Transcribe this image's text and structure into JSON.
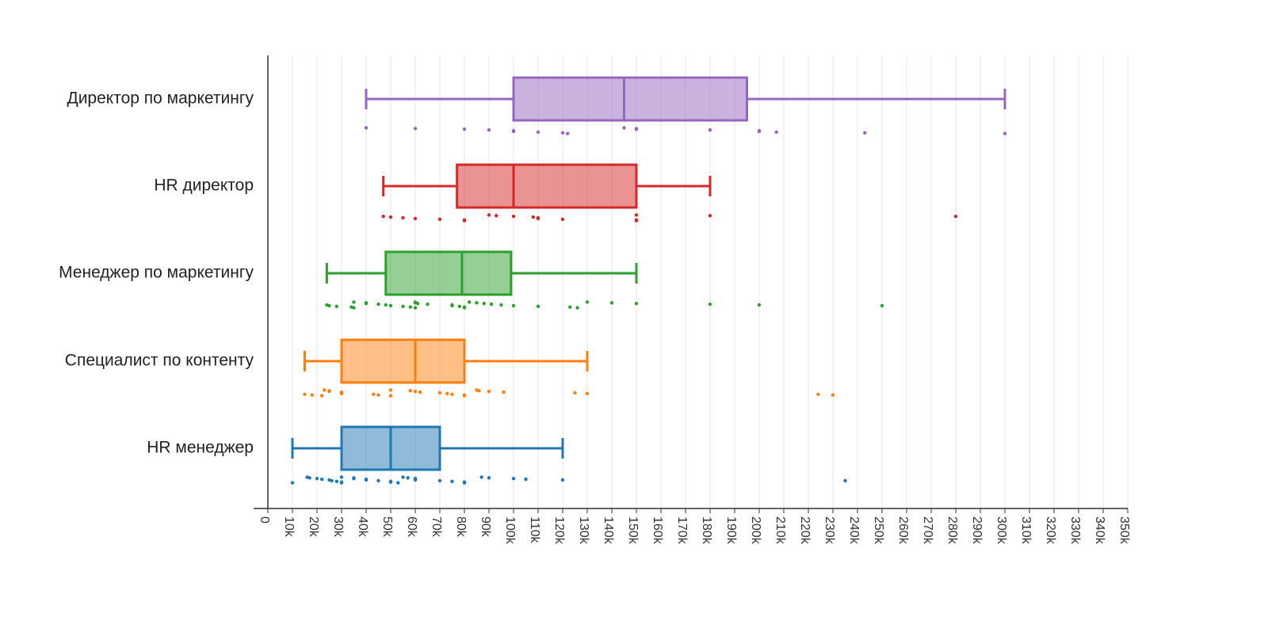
{
  "chart_data": {
    "type": "box",
    "title": "",
    "xlabel": "",
    "ylabel": "",
    "xlim": [
      0,
      350000
    ],
    "grid": true,
    "orientation": "horizontal",
    "x_ticks": [
      {
        "value": 0,
        "label": "0"
      },
      {
        "value": 10000,
        "label": "10k"
      },
      {
        "value": 20000,
        "label": "20k"
      },
      {
        "value": 30000,
        "label": "30k"
      },
      {
        "value": 40000,
        "label": "40k"
      },
      {
        "value": 50000,
        "label": "50k"
      },
      {
        "value": 60000,
        "label": "60k"
      },
      {
        "value": 70000,
        "label": "70k"
      },
      {
        "value": 80000,
        "label": "80k"
      },
      {
        "value": 90000,
        "label": "90k"
      },
      {
        "value": 100000,
        "label": "100k"
      },
      {
        "value": 110000,
        "label": "110k"
      },
      {
        "value": 120000,
        "label": "120k"
      },
      {
        "value": 130000,
        "label": "130k"
      },
      {
        "value": 140000,
        "label": "140k"
      },
      {
        "value": 150000,
        "label": "150k"
      },
      {
        "value": 160000,
        "label": "160k"
      },
      {
        "value": 170000,
        "label": "170k"
      },
      {
        "value": 180000,
        "label": "180k"
      },
      {
        "value": 190000,
        "label": "190k"
      },
      {
        "value": 200000,
        "label": "200k"
      },
      {
        "value": 210000,
        "label": "210k"
      },
      {
        "value": 220000,
        "label": "220k"
      },
      {
        "value": 230000,
        "label": "230k"
      },
      {
        "value": 240000,
        "label": "240k"
      },
      {
        "value": 250000,
        "label": "250k"
      },
      {
        "value": 260000,
        "label": "260k"
      },
      {
        "value": 270000,
        "label": "270k"
      },
      {
        "value": 280000,
        "label": "280k"
      },
      {
        "value": 290000,
        "label": "290k"
      },
      {
        "value": 300000,
        "label": "300k"
      },
      {
        "value": 310000,
        "label": "310k"
      },
      {
        "value": 320000,
        "label": "320k"
      },
      {
        "value": 330000,
        "label": "330k"
      },
      {
        "value": 340000,
        "label": "340k"
      },
      {
        "value": 350000,
        "label": "350k"
      }
    ],
    "series": [
      {
        "name": "Директор по маркетингу",
        "color": "#9467bd",
        "whisker_low": 40000,
        "q1": 100000,
        "median": 145000,
        "q3": 195000,
        "whisker_high": 300000,
        "points": [
          40000,
          60000,
          80000,
          90000,
          100000,
          100000,
          110000,
          120000,
          122000,
          145000,
          150000,
          150000,
          180000,
          200000,
          200000,
          207000,
          243000,
          300000
        ]
      },
      {
        "name": "HR директор",
        "color": "#d62728",
        "whisker_low": 47000,
        "q1": 77000,
        "median": 100000,
        "q3": 150000,
        "whisker_high": 180000,
        "points": [
          47000,
          50000,
          55000,
          60000,
          70000,
          80000,
          80000,
          90000,
          93000,
          100000,
          108000,
          110000,
          110000,
          120000,
          150000,
          150000,
          150000,
          180000,
          280000
        ]
      },
      {
        "name": "Менеджер по маркетингу",
        "color": "#2ca02c",
        "whisker_low": 24000,
        "q1": 48000,
        "median": 79000,
        "q3": 99000,
        "whisker_high": 150000,
        "points": [
          24000,
          25000,
          28000,
          34000,
          35000,
          35000,
          40000,
          40000,
          45000,
          48000,
          50000,
          55000,
          58000,
          60000,
          60000,
          60000,
          61000,
          65000,
          75000,
          75000,
          78000,
          80000,
          80000,
          82000,
          85000,
          88000,
          91000,
          95000,
          100000,
          110000,
          123000,
          126000,
          130000,
          140000,
          150000,
          180000,
          200000,
          250000
        ]
      },
      {
        "name": "Специалист по контенту",
        "color": "#ff7f0e",
        "whisker_low": 15000,
        "q1": 30000,
        "median": 60000,
        "q3": 80000,
        "whisker_high": 130000,
        "points": [
          15000,
          18000,
          22000,
          23000,
          25000,
          25000,
          30000,
          30000,
          30000,
          43000,
          45000,
          50000,
          50000,
          58000,
          60000,
          62000,
          70000,
          73000,
          75000,
          80000,
          80000,
          85000,
          86000,
          90000,
          96000,
          125000,
          130000,
          224000,
          230000
        ]
      },
      {
        "name": "HR менеджер",
        "color": "#1f77b4",
        "whisker_low": 10000,
        "q1": 30000,
        "median": 50000,
        "q3": 70000,
        "whisker_high": 120000,
        "points": [
          10000,
          16000,
          17000,
          20000,
          22000,
          25000,
          26000,
          28000,
          30000,
          30000,
          30000,
          35000,
          35000,
          40000,
          40000,
          45000,
          50000,
          50000,
          53000,
          55000,
          57000,
          60000,
          60000,
          60000,
          70000,
          75000,
          80000,
          80000,
          87000,
          90000,
          100000,
          105000,
          120000,
          235000
        ]
      }
    ]
  }
}
